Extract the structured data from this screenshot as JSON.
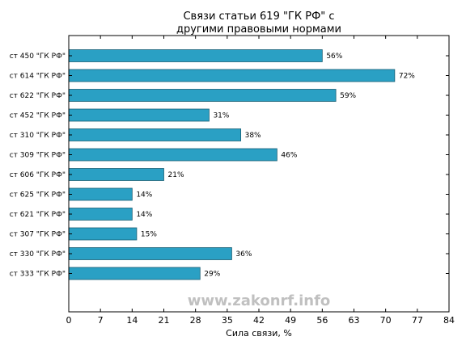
{
  "chart_data": {
    "type": "bar",
    "orientation": "horizontal",
    "title_lines": [
      "Связи статьи 619 \"ГК РФ\" с",
      "другими правовыми нормами"
    ],
    "xlabel": "Сила связи, %",
    "ylabel": "",
    "categories": [
      "ст 450 \"ГК РФ\"",
      "ст 614 \"ГК РФ\"",
      "ст 622 \"ГК РФ\"",
      "ст 452 \"ГК РФ\"",
      "ст 310 \"ГК РФ\"",
      "ст 309 \"ГК РФ\"",
      "ст 606 \"ГК РФ\"",
      "ст 625 \"ГК РФ\"",
      "ст 621 \"ГК РФ\"",
      "ст 307 \"ГК РФ\"",
      "ст 330 \"ГК РФ\"",
      "ст 333 \"ГК РФ\""
    ],
    "values": [
      56,
      72,
      59,
      31,
      38,
      46,
      21,
      14,
      14,
      15,
      36,
      29
    ],
    "value_labels": [
      "56%",
      "72%",
      "59%",
      "31%",
      "38%",
      "46%",
      "21%",
      "14%",
      "14%",
      "15%",
      "36%",
      "29%"
    ],
    "xlim": [
      0,
      84
    ],
    "xticks": [
      0,
      7,
      14,
      21,
      28,
      35,
      42,
      49,
      56,
      63,
      70,
      77,
      84
    ],
    "grid": false,
    "bar_color": "#2aa0c4",
    "bar_edge_color": "#1a5f75"
  },
  "watermark": "www.zakonrf.info"
}
